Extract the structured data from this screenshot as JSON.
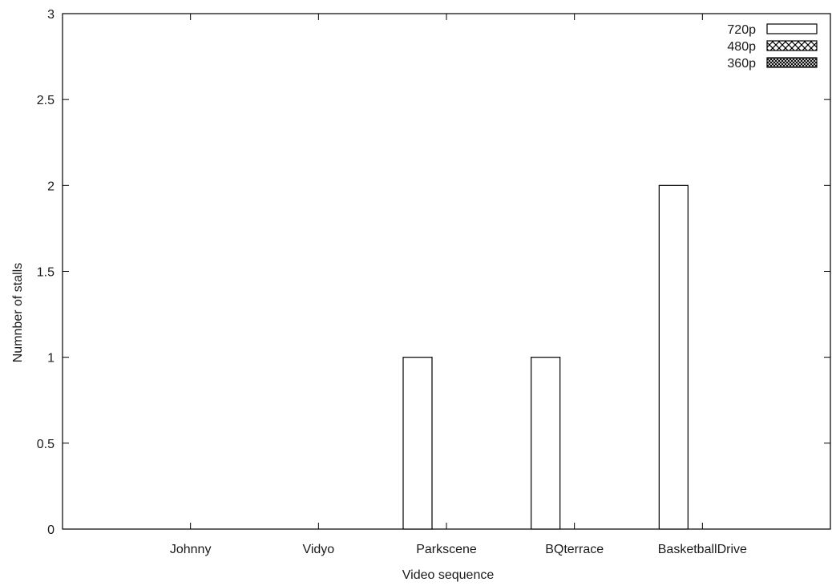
{
  "chart_data": {
    "type": "bar",
    "categories": [
      "Johnny",
      "Vidyo",
      "Parkscene",
      "BQterrace",
      "BasketballDrive"
    ],
    "series": [
      {
        "name": "720p",
        "values": [
          0,
          0,
          1,
          1,
          2
        ],
        "pattern": "none"
      },
      {
        "name": "480p",
        "values": [
          0,
          0,
          0,
          0,
          0
        ],
        "pattern": "crosshatch"
      },
      {
        "name": "360p",
        "values": [
          0,
          0,
          0,
          0,
          0
        ],
        "pattern": "dense-crosshatch"
      }
    ],
    "xlabel": "Video sequence",
    "ylabel": "Numnber of stalls",
    "ylim": [
      0,
      3
    ],
    "yticks": [
      "0",
      "0.5",
      "1",
      "1.5",
      "2",
      "2.5",
      "3"
    ],
    "grid": false,
    "legend": "top-right",
    "colors": {
      "bar_stroke": "#000000",
      "bar_fill": "#ffffff",
      "axis": "#000000"
    }
  }
}
